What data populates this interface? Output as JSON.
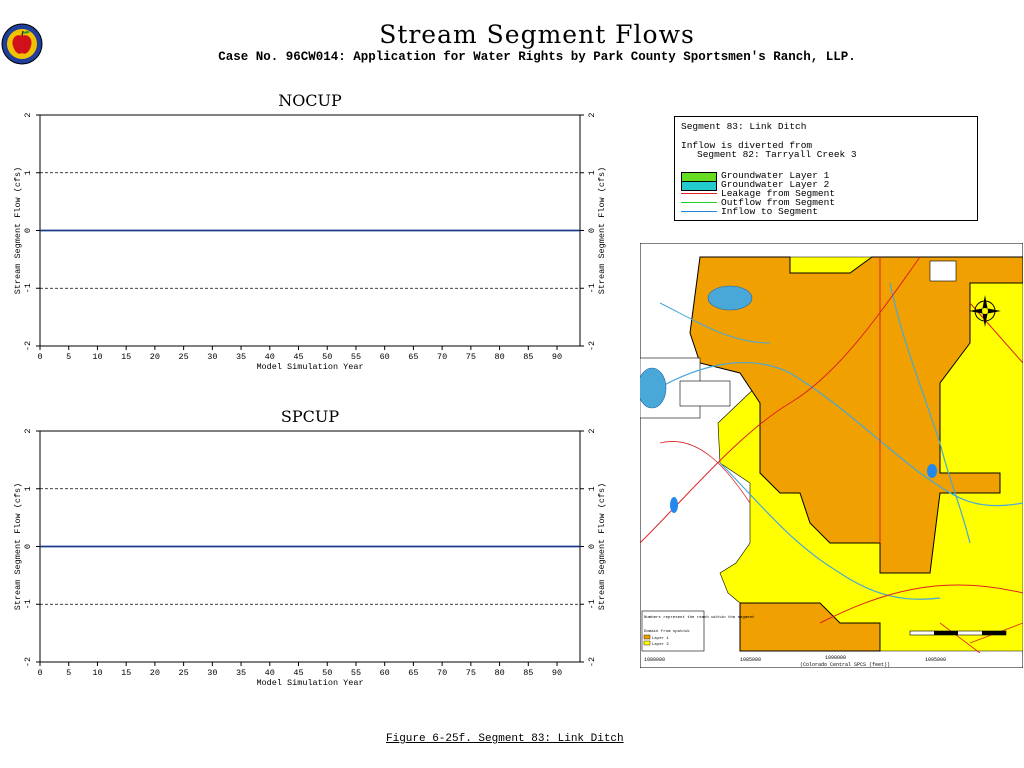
{
  "header": {
    "title": "Stream  Segment  Flows",
    "subtitle": "Case No. 96CW014: Application for Water Rights by Park County Sportsmen's Ranch, LLP."
  },
  "chart_data": [
    {
      "type": "line",
      "title": "NOCUP",
      "xlabel": "Model Simulation Year",
      "ylabel": "Stream Segment Flow (cfs)",
      "xlim": [
        0,
        94
      ],
      "ylim": [
        -2,
        2
      ],
      "x_ticks": [
        "0",
        "5",
        "10",
        "15",
        "20",
        "25",
        "30",
        "35",
        "40",
        "45",
        "50",
        "55",
        "60",
        "65",
        "70",
        "75",
        "80",
        "85",
        "90"
      ],
      "y_ticks": [
        "-2",
        "-1",
        "0",
        "1",
        "2"
      ],
      "dashed_gridlines_y": [
        1,
        -1
      ],
      "series": [
        {
          "color": "#1a3a8c",
          "x": [
            0,
            94
          ],
          "y": [
            0,
            0
          ]
        }
      ]
    },
    {
      "type": "line",
      "title": "SPCUP",
      "xlabel": "Model Simulation Year",
      "ylabel": "Stream Segment Flow (cfs)",
      "xlim": [
        0,
        94
      ],
      "ylim": [
        -2,
        2
      ],
      "x_ticks": [
        "0",
        "5",
        "10",
        "15",
        "20",
        "25",
        "30",
        "35",
        "40",
        "45",
        "50",
        "55",
        "60",
        "65",
        "70",
        "75",
        "80",
        "85",
        "90"
      ],
      "y_ticks": [
        "-2",
        "-1",
        "0",
        "1",
        "2"
      ],
      "dashed_gridlines_y": [
        1,
        -1
      ],
      "series": [
        {
          "color": "#1a3a8c",
          "x": [
            0,
            94
          ],
          "y": [
            0,
            0
          ]
        }
      ]
    }
  ],
  "legend": {
    "header": "Segment 83: Link Ditch",
    "desc1": "Inflow is diverted from",
    "desc2": "Segment  82: Tarryall Creek 3",
    "items": [
      {
        "label": "Groundwater Layer 1",
        "kind": "swatch",
        "color": "#66dd22"
      },
      {
        "label": "Groundwater Layer 2",
        "kind": "swatch",
        "color": "#22cccc"
      },
      {
        "label": "Leakage from Segment",
        "kind": "line",
        "color": "#dd2222"
      },
      {
        "label": "Outflow from Segment",
        "kind": "line",
        "color": "#22cc22"
      },
      {
        "label": "Inflow to Segment",
        "kind": "line",
        "color": "#2288dd"
      }
    ]
  },
  "map": {
    "colors": {
      "layer1": "#f0a000",
      "layer2": "#ffff00",
      "stream": "#4aa8d8",
      "road": "#dd2222"
    },
    "note": "Numbers represent the reach within the segment",
    "legend_title": "Domain from sputnik",
    "legend_items": [
      "Layer 1",
      "Layer 2"
    ],
    "x_ticks": [
      "1080000",
      "1085000",
      "1090000",
      "1095000"
    ],
    "x_label": "(Colorado Central SPCS (feet))"
  },
  "caption": "Figure 6-25f.  Segment 83: Link Ditch"
}
